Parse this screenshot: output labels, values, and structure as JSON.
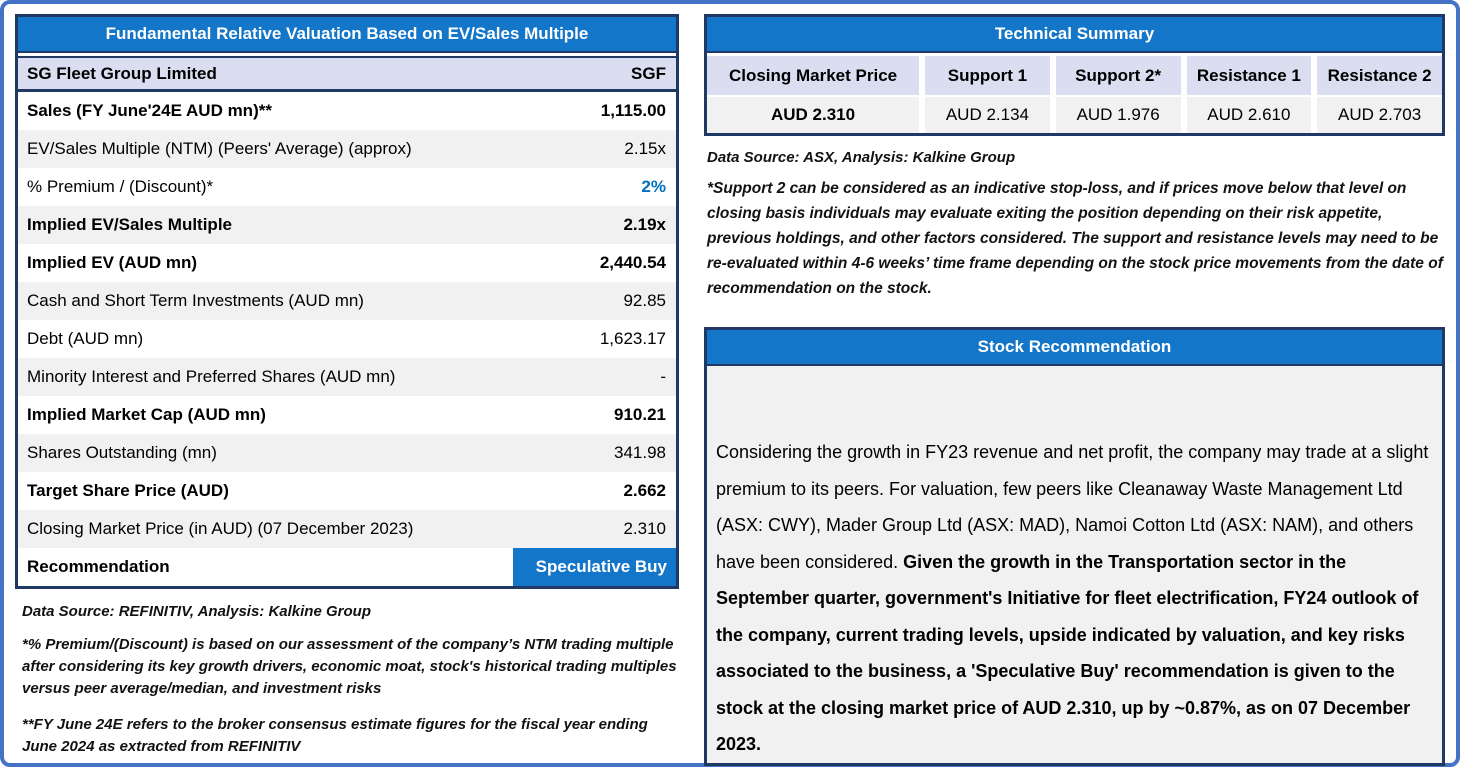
{
  "colors": {
    "header_blue": "#1476C8",
    "border_navy": "#1F3864",
    "frame_blue": "#4472C4",
    "row_alt_gray": "#F1F1F1",
    "subheader_lavender": "#DADEF0",
    "premium_value_blue": "#0070C0"
  },
  "valuation_table": {
    "title": "Fundamental Relative Valuation Based on EV/Sales Multiple",
    "subheader": {
      "label": "SG Fleet Group Limited",
      "value": "SGF"
    },
    "rows": [
      {
        "label": "Sales (FY June'24E AUD mn)**",
        "value": "1,115.00",
        "label_bold": true,
        "value_bold": true
      },
      {
        "label": "EV/Sales Multiple (NTM)  (Peers' Average) (approx)",
        "value": "2.15x",
        "label_bold": false,
        "value_bold": false
      },
      {
        "label": "% Premium / (Discount)*",
        "value": "2%",
        "label_bold": false,
        "value_bold": true,
        "value_color": "#0070C0"
      },
      {
        "label": "Implied EV/Sales Multiple",
        "value": "2.19x",
        "label_bold": true,
        "value_bold": true
      },
      {
        "label": "Implied EV (AUD mn)",
        "value": "2,440.54",
        "label_bold": true,
        "value_bold": true
      },
      {
        "label": "Cash and Short Term Investments (AUD mn)",
        "value": "92.85",
        "label_bold": false,
        "value_bold": false
      },
      {
        "label": "Debt (AUD mn)",
        "value": "1,623.17",
        "label_bold": false,
        "value_bold": false
      },
      {
        "label": "Minority Interest and Preferred Shares (AUD mn)",
        "value": "-",
        "label_bold": false,
        "value_bold": false
      },
      {
        "label": "Implied Market Cap (AUD mn)",
        "value": "910.21",
        "label_bold": true,
        "value_bold": true
      },
      {
        "label": "Shares Outstanding (mn)",
        "value": "341.98",
        "label_bold": false,
        "value_bold": false
      },
      {
        "label": "Target Share Price (AUD)",
        "value": "2.662",
        "label_bold": true,
        "value_bold": true
      },
      {
        "label": "Closing Market Price (in AUD) (07 December 2023)",
        "value": "2.310",
        "label_bold": false,
        "value_bold": false
      }
    ],
    "recommendation_row": {
      "label": "Recommendation",
      "value": "Speculative Buy"
    },
    "source": "Data Source: REFINITIV, Analysis: Kalkine Group",
    "footnote1": "*% Premium/(Discount) is based on our assessment of the company’s NTM trading multiple after considering its key growth drivers, economic moat, stock's historical trading multiples versus peer average/median, and investment risks",
    "footnote2": "**FY June 24E refers to the broker consensus estimate figures for the fiscal year ending June 2024  as extracted from REFINITIV"
  },
  "technical_summary": {
    "title": "Technical Summary",
    "columns": [
      "Closing Market Price",
      "Support 1",
      "Support 2*",
      "Resistance 1",
      "Resistance 2"
    ],
    "values": [
      "AUD 2.310",
      "AUD 2.134",
      "AUD 1.976",
      "AUD 2.610",
      "AUD 2.703"
    ],
    "source": "Data Source: ASX, Analysis: Kalkine Group",
    "footnote": "*Support 2 can be considered as an indicative stop-loss, and if prices move below that level on closing basis individuals may evaluate exiting the position depending on their risk appetite, previous holdings, and other factors considered. The support and resistance levels may need to be re-evaluated within 4-6 weeks’ time frame depending on the stock price movements from the date of recommendation on the stock."
  },
  "stock_recommendation": {
    "title": "Stock Recommendation",
    "body_regular": "Considering the growth in FY23 revenue and net profit, the company may trade at a slight premium to its peers. For valuation, few peers like Cleanaway Waste Management Ltd (ASX: CWY), Mader Group Ltd (ASX: MAD), Namoi Cotton Ltd (ASX: NAM), and others have been considered. ",
    "body_bold": "Given the growth in the Transportation sector in the September quarter, government's Initiative for fleet electrification, FY24 outlook of the company, current trading levels, upside indicated by valuation, and key risks associated to the business, a 'Speculative Buy' recommendation is given to the stock at the closing market price of AUD 2.310, up by ~0.87%, as on 07 December 2023."
  }
}
